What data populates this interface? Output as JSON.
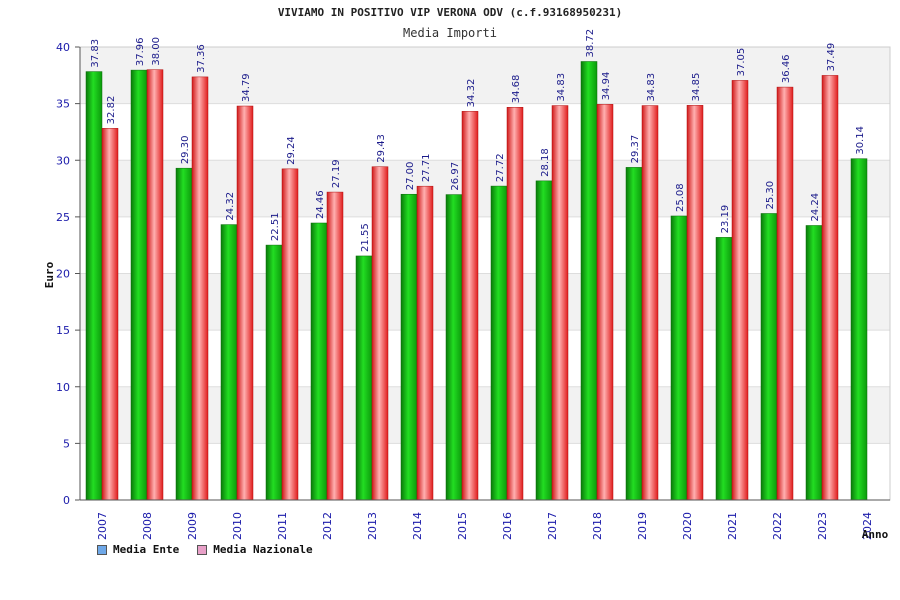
{
  "chart_data": {
    "type": "bar",
    "title": "VIVIAMO IN POSITIVO VIP VERONA ODV (c.f.93168950231)",
    "subtitle": "Media Importi",
    "xlabel": "Anno",
    "ylabel": "Euro",
    "ylim": [
      0,
      40
    ],
    "yticks": [
      "0",
      "5",
      "10",
      "15",
      "20",
      "25",
      "30",
      "35",
      "40"
    ],
    "grid": true,
    "legend_position": "bottom-left",
    "categories": [
      "2007",
      "2008",
      "2009",
      "2010",
      "2011",
      "2012",
      "2013",
      "2014",
      "2015",
      "2016",
      "2017",
      "2018",
      "2019",
      "2020",
      "2021",
      "2022",
      "2023",
      "2024"
    ],
    "series": [
      {
        "name": "Media Ente",
        "color": "#22bb22",
        "legend_color": "#6fa8e8",
        "values": [
          37.83,
          37.96,
          29.3,
          24.32,
          22.51,
          24.46,
          21.55,
          27.0,
          26.97,
          27.72,
          28.18,
          38.72,
          29.37,
          25.08,
          23.19,
          25.3,
          24.24,
          30.14
        ],
        "labels": [
          "37.83",
          "37.96",
          "29.30",
          "24.32",
          "22.51",
          "24.46",
          "21.55",
          "27.00",
          "26.97",
          "27.72",
          "28.18",
          "38.72",
          "29.37",
          "25.08",
          "23.19",
          "25.30",
          "24.24",
          "30.14"
        ]
      },
      {
        "name": "Media Nazionale",
        "color": "#ee2222",
        "legend_color": "#e8a0c8",
        "values": [
          32.82,
          38.0,
          37.36,
          34.79,
          29.24,
          27.19,
          29.43,
          27.71,
          34.32,
          34.68,
          34.83,
          34.94,
          34.83,
          34.85,
          37.05,
          36.46,
          37.49,
          null
        ],
        "labels": [
          "32.82",
          "38.00",
          "37.36",
          "34.79",
          "29.24",
          "27.19",
          "29.43",
          "27.71",
          "34.32",
          "34.68",
          "34.83",
          "34.94",
          "34.83",
          "34.85",
          "37.05",
          "36.46",
          "37.49",
          ""
        ]
      }
    ]
  }
}
